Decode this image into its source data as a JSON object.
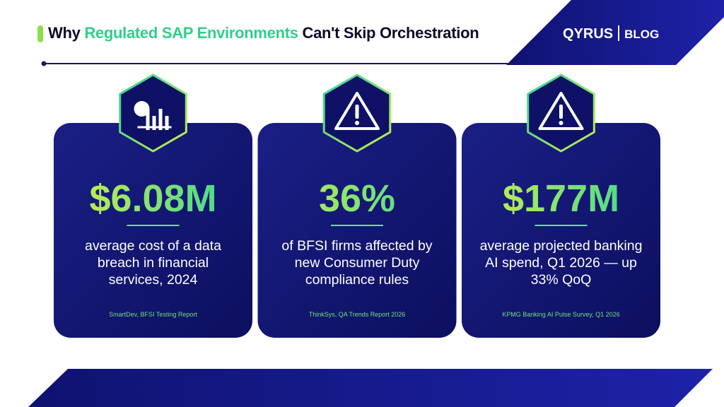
{
  "header": {
    "title": {
      "lead": "Why",
      "highlight": "Regulated SAP Environments",
      "tail": "Can't Skip Orchestration"
    },
    "brand": {
      "logo": "QYRUS",
      "section": "BLOG"
    }
  },
  "cards": [
    {
      "stat": "$6.08M",
      "description": "average cost of a data breach in financial services, 2024",
      "source": "SmartDev, BFSI Testing Report"
    },
    {
      "stat": "36%",
      "description": "of BFSI firms affected by new Consumer Duty compliance rules",
      "source": "ThinkSys, QA Trends Report 2026"
    },
    {
      "stat": "$177M",
      "description": "average projected banking AI spend, Q1 2026 — up 33% QoQ",
      "source": "KPMG Banking AI Pulse Survey, Q1 2026"
    }
  ]
}
